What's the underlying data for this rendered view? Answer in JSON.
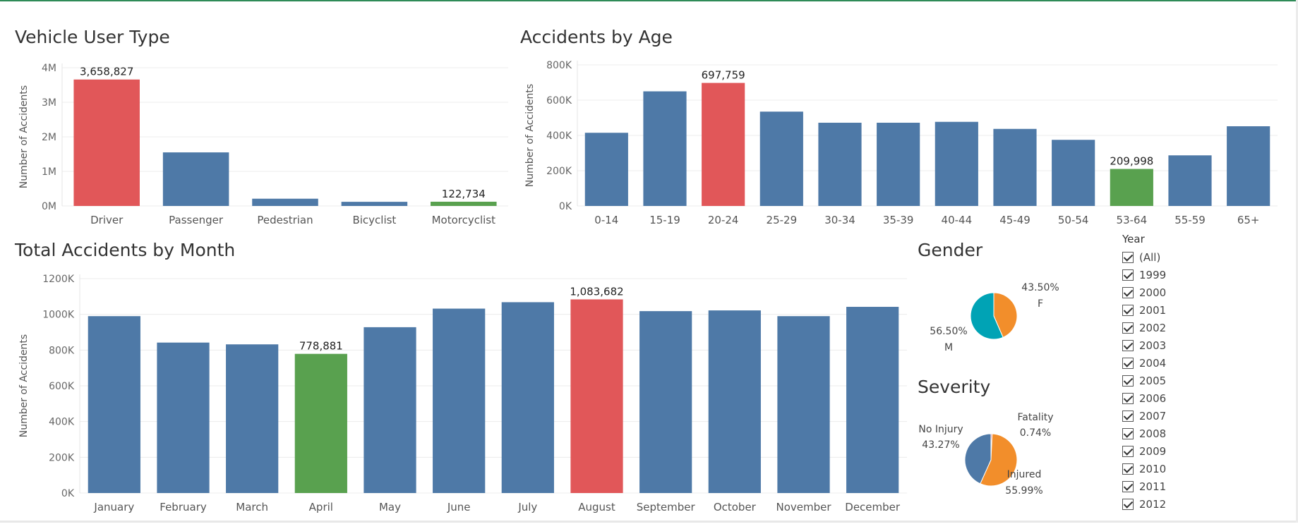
{
  "vehicle_user_type": {
    "title": "Vehicle User Type",
    "chart_data": {
      "type": "bar",
      "title": "Vehicle User Type",
      "ylabel": "Number of Accidents",
      "categories": [
        "Driver",
        "Passenger",
        "Pedestrian",
        "Bicyclist",
        "Motorcyclist"
      ],
      "values": [
        3658827,
        1550000,
        210000,
        120000,
        122734
      ],
      "colors": [
        "#e15759",
        "#4e79a7",
        "#4e79a7",
        "#4e79a7",
        "#59a14f"
      ],
      "data_labels": [
        "3,658,827",
        "",
        "",
        "",
        "122,734"
      ],
      "ylim": [
        0,
        4000000
      ],
      "yticks": [
        0,
        1000000,
        2000000,
        3000000,
        4000000
      ],
      "ytick_labels": [
        "0M",
        "1M",
        "2M",
        "3M",
        "4M"
      ],
      "grid": true
    }
  },
  "accidents_by_age": {
    "title": "Accidents by Age",
    "chart_data": {
      "type": "bar",
      "title": "Accidents by Age",
      "ylabel": "Number of Accidents",
      "categories": [
        "0-14",
        "15-19",
        "20-24",
        "25-29",
        "30-34",
        "35-39",
        "40-44",
        "45-49",
        "50-54",
        "53-64",
        "55-59",
        "65+"
      ],
      "values": [
        415000,
        650000,
        697759,
        535000,
        472000,
        472000,
        477000,
        437000,
        375000,
        209998,
        287000,
        452000
      ],
      "colors": [
        "#4e79a7",
        "#4e79a7",
        "#e15759",
        "#4e79a7",
        "#4e79a7",
        "#4e79a7",
        "#4e79a7",
        "#4e79a7",
        "#4e79a7",
        "#59a14f",
        "#4e79a7",
        "#4e79a7"
      ],
      "data_labels": [
        "",
        "",
        "697,759",
        "",
        "",
        "",
        "",
        "",
        "",
        "209,998",
        "",
        ""
      ],
      "ylim": [
        0,
        800000
      ],
      "yticks": [
        0,
        200000,
        400000,
        600000,
        800000
      ],
      "ytick_labels": [
        "0K",
        "200K",
        "400K",
        "600K",
        "800K"
      ],
      "grid": true
    }
  },
  "accidents_by_month": {
    "title": "Total Accidents by Month",
    "chart_data": {
      "type": "bar",
      "title": "Total Accidents by Month",
      "ylabel": "Number of Accidents",
      "categories": [
        "January",
        "February",
        "March",
        "April",
        "May",
        "June",
        "July",
        "August",
        "September",
        "October",
        "November",
        "December"
      ],
      "values": [
        990000,
        842000,
        832000,
        778881,
        928000,
        1032000,
        1068000,
        1083682,
        1018000,
        1022000,
        990000,
        1042000
      ],
      "colors": [
        "#4e79a7",
        "#4e79a7",
        "#4e79a7",
        "#59a14f",
        "#4e79a7",
        "#4e79a7",
        "#4e79a7",
        "#e15759",
        "#4e79a7",
        "#4e79a7",
        "#4e79a7",
        "#4e79a7"
      ],
      "data_labels": [
        "",
        "",
        "",
        "778,881",
        "",
        "",
        "",
        "1,083,682",
        "",
        "",
        "",
        ""
      ],
      "ylim": [
        0,
        1200000
      ],
      "yticks": [
        0,
        200000,
        400000,
        600000,
        800000,
        1000000,
        1200000
      ],
      "ytick_labels": [
        "0K",
        "200K",
        "400K",
        "600K",
        "800K",
        "1000K",
        "1200K"
      ],
      "grid": true
    }
  },
  "gender": {
    "title": "Gender",
    "chart_data": {
      "type": "pie",
      "title": "Gender",
      "slices": [
        {
          "label": "F",
          "value": 43.5,
          "pct_label": "43.50%",
          "color": "#f28e2b"
        },
        {
          "label": "M",
          "value": 56.5,
          "pct_label": "56.50%",
          "color": "#00a3b5"
        }
      ]
    }
  },
  "severity": {
    "title": "Severity",
    "chart_data": {
      "type": "pie",
      "title": "Severity",
      "slices": [
        {
          "label": "Fatality",
          "value": 0.74,
          "pct_label": "0.74%",
          "color": "#e15759"
        },
        {
          "label": "Injured",
          "value": 55.99,
          "pct_label": "55.99%",
          "color": "#f28e2b"
        },
        {
          "label": "No Injury",
          "value": 43.27,
          "pct_label": "43.27%",
          "color": "#4e79a7"
        }
      ]
    }
  },
  "year_filter": {
    "title": "Year",
    "items": [
      "(All)",
      "1999",
      "2000",
      "2001",
      "2002",
      "2003",
      "2004",
      "2005",
      "2006",
      "2007",
      "2008",
      "2009",
      "2010",
      "2011",
      "2012"
    ]
  }
}
